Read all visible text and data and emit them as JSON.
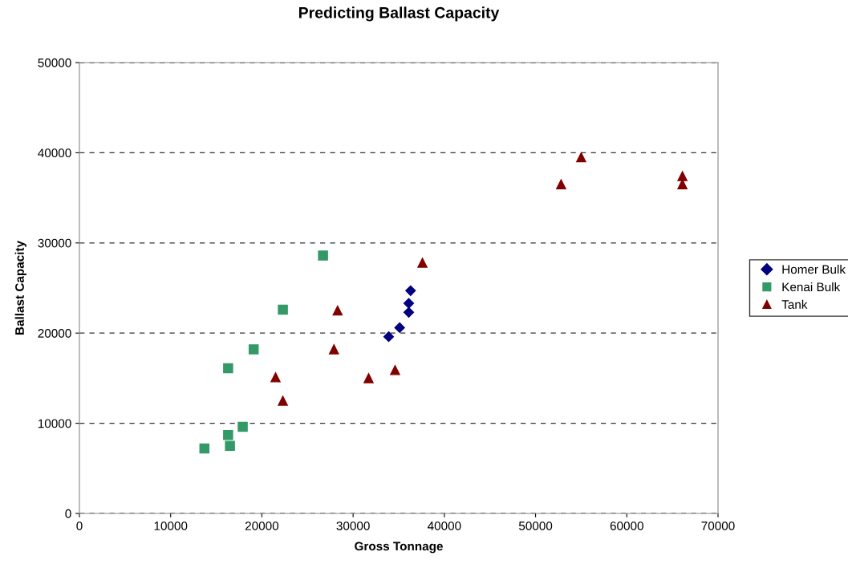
{
  "chart_data": {
    "type": "scatter",
    "title": "Predicting Ballast Capacity",
    "xlabel": "Gross Tonnage",
    "ylabel": "Ballast Capacity",
    "xlim": [
      0,
      70000
    ],
    "ylim": [
      0,
      50000
    ],
    "xticks": [
      0,
      10000,
      20000,
      30000,
      40000,
      50000,
      60000,
      70000
    ],
    "yticks": [
      0,
      10000,
      20000,
      30000,
      40000,
      50000
    ],
    "grid": "y",
    "legend": "right",
    "series": [
      {
        "name": "Homer Bulk",
        "color": "#000080",
        "marker": "diamond",
        "x": [
          33900,
          35100,
          36100,
          36100,
          36300
        ],
        "values": [
          19600,
          20600,
          22300,
          23300,
          24700
        ]
      },
      {
        "name": "Kenai Bulk",
        "color": "#339966",
        "marker": "square",
        "x": [
          13700,
          16300,
          16500,
          17900,
          16300,
          19100,
          22300,
          26700
        ],
        "values": [
          7200,
          8700,
          7500,
          9600,
          16100,
          18200,
          22600,
          28600
        ]
      },
      {
        "name": "Tank",
        "color": "#800000",
        "marker": "triangle",
        "x": [
          21500,
          22300,
          27900,
          28300,
          31700,
          34600,
          37600,
          52800,
          55000,
          66100,
          66100
        ],
        "values": [
          15100,
          12500,
          18200,
          22500,
          15000,
          15900,
          27800,
          36500,
          39500,
          37400,
          36500
        ]
      }
    ]
  }
}
